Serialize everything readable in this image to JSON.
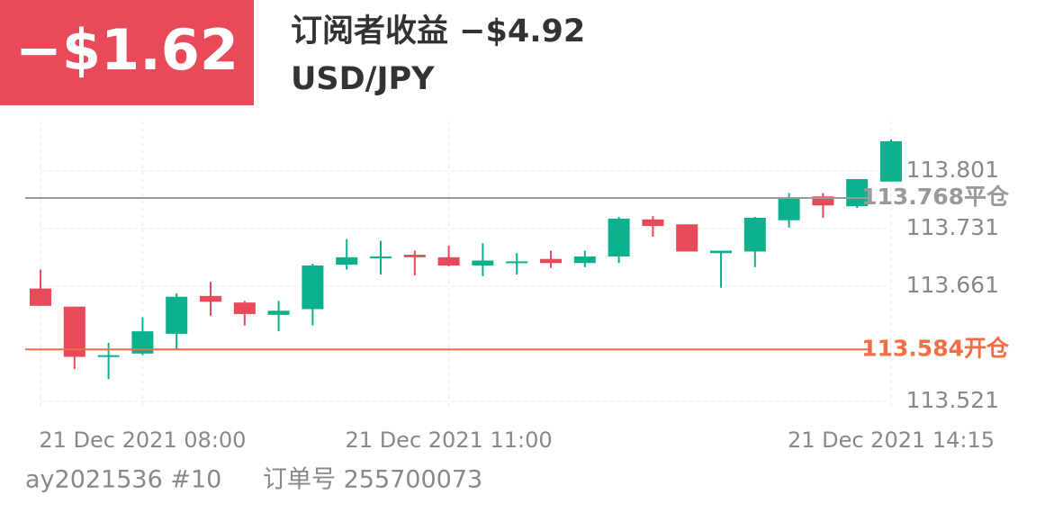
{
  "header": {
    "pnl": "−$1.62",
    "title": "订阅者收益 −$4.92",
    "symbol": "USD/JPY"
  },
  "chart_data": {
    "type": "candlestick",
    "categories": [
      null,
      null,
      null,
      "21 Dec 2021 08:00",
      null,
      null,
      null,
      null,
      null,
      null,
      null,
      null,
      "21 Dec 2021 11:00",
      null,
      null,
      null,
      null,
      null,
      null,
      null,
      null,
      null,
      null,
      null,
      null,
      "21 Dec 2021 14:15"
    ],
    "open": [
      113.658,
      113.636,
      113.575,
      113.579,
      113.603,
      113.649,
      113.641,
      113.626,
      113.633,
      113.687,
      113.695,
      113.699,
      113.696,
      113.686,
      113.689,
      113.694,
      113.689,
      113.697,
      113.742,
      113.736,
      113.701,
      113.703,
      113.741,
      113.77,
      113.758,
      113.788
    ],
    "high": [
      113.681,
      113.636,
      113.592,
      113.623,
      113.652,
      113.666,
      113.643,
      113.643,
      113.688,
      113.718,
      113.716,
      113.704,
      113.71,
      113.713,
      113.701,
      113.704,
      113.704,
      113.745,
      113.746,
      113.736,
      113.704,
      113.745,
      113.774,
      113.774,
      113.791,
      113.839
    ],
    "low": [
      113.637,
      113.56,
      113.548,
      113.577,
      113.584,
      113.625,
      113.613,
      113.606,
      113.613,
      113.681,
      113.675,
      113.674,
      113.685,
      113.673,
      113.675,
      113.683,
      113.684,
      113.689,
      113.721,
      113.703,
      113.659,
      113.684,
      113.732,
      113.744,
      113.756,
      113.788
    ],
    "close": [
      113.637,
      113.575,
      113.577,
      113.606,
      113.648,
      113.642,
      113.627,
      113.631,
      113.686,
      113.696,
      113.697,
      113.696,
      113.686,
      113.692,
      113.691,
      113.689,
      113.697,
      113.743,
      113.734,
      113.703,
      113.704,
      113.744,
      113.769,
      113.759,
      113.791,
      113.837
    ],
    "up_color": "#0bb08c",
    "down_color": "#e84a5a",
    "ylim": [
      113.511,
      113.861
    ],
    "yticks": [
      113.521,
      113.661,
      113.731,
      113.801
    ],
    "grid": true,
    "reference_lines": [
      {
        "value": 113.768,
        "label": "113.768平仓",
        "color": "#9a9a9a"
      },
      {
        "value": 113.584,
        "label": "113.584开仓",
        "color": "#f36d45"
      }
    ]
  },
  "footer": {
    "account": "ay2021536 #10",
    "order": "订单号 255700073"
  }
}
